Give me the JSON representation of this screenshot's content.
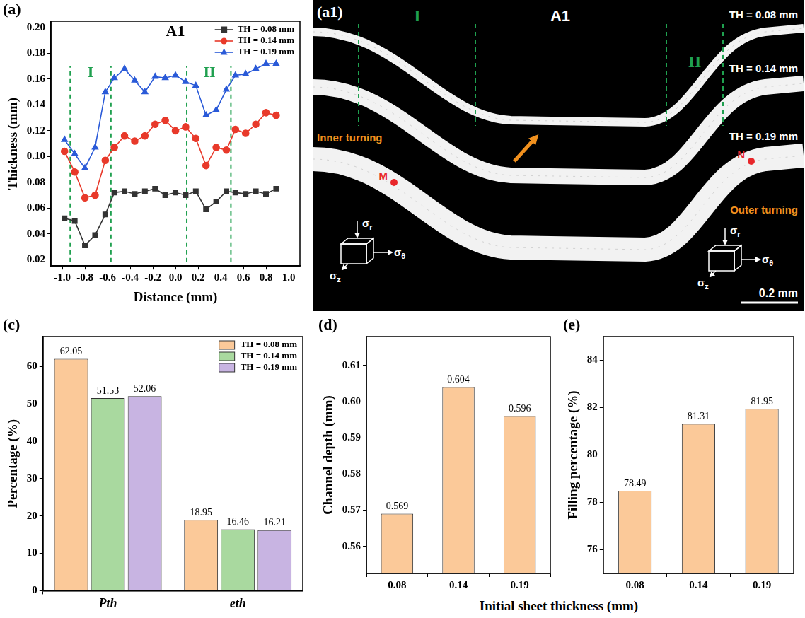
{
  "chart_data": [
    {
      "panel": "(a)",
      "type": "line",
      "title": "A1",
      "xlabel": "Distance (mm)",
      "ylabel": "Thickness (mm)",
      "x": [
        -0.98,
        -0.89,
        -0.8,
        -0.71,
        -0.62,
        -0.54,
        -0.45,
        -0.36,
        -0.27,
        -0.18,
        -0.09,
        0,
        0.09,
        0.18,
        0.27,
        0.36,
        0.45,
        0.53,
        0.62,
        0.71,
        0.8,
        0.89
      ],
      "series": [
        {
          "name": "TH = 0.08 mm",
          "color": "#333333",
          "marker": "square",
          "values": [
            0.052,
            0.05,
            0.031,
            0.039,
            0.055,
            0.072,
            0.073,
            0.071,
            0.073,
            0.075,
            0.07,
            0.072,
            0.07,
            0.073,
            0.059,
            0.065,
            0.073,
            0.072,
            0.071,
            0.073,
            0.071,
            0.075
          ]
        },
        {
          "name": "TH = 0.14 mm",
          "color": "#e8392a",
          "marker": "circle",
          "values": [
            0.104,
            0.088,
            0.068,
            0.07,
            0.097,
            0.107,
            0.116,
            0.112,
            0.116,
            0.125,
            0.128,
            0.12,
            0.123,
            0.114,
            0.093,
            0.107,
            0.105,
            0.121,
            0.118,
            0.125,
            0.134,
            0.132
          ]
        },
        {
          "name": "TH = 0.19 mm",
          "color": "#2a5ad8",
          "marker": "triangle",
          "values": [
            0.113,
            0.102,
            0.091,
            0.107,
            0.15,
            0.161,
            0.168,
            0.159,
            0.15,
            0.162,
            0.161,
            0.163,
            0.158,
            0.155,
            0.132,
            0.136,
            0.152,
            0.163,
            0.164,
            0.168,
            0.172,
            0.172
          ]
        }
      ],
      "xlim": [
        -1.1,
        1.1
      ],
      "xticks": [
        {
          "value": -1,
          "label": "-1.0"
        },
        -0.8,
        -0.6,
        -0.4,
        -0.2,
        {
          "value": 0,
          "label": "0.0"
        },
        0.2,
        0.4,
        0.6,
        0.8,
        {
          "value": 1,
          "label": "1.0"
        }
      ],
      "ylim": [
        0.015,
        0.205
      ],
      "yticks": [
        0.02,
        0.04,
        0.06,
        0.08,
        {
          "value": 0.1,
          "label": "0.10"
        },
        0.12,
        0.14,
        0.16,
        0.18,
        {
          "value": 0.2,
          "label": "0.20"
        }
      ],
      "grid": false,
      "legend": "upper right",
      "annotations": [
        {
          "text": "I",
          "x": -0.75,
          "y": 0.165
        },
        {
          "text": "II",
          "x": 0.3,
          "y": 0.165
        }
      ],
      "vlines": [
        {
          "x": -0.93,
          "y": [
            0.018,
            0.17
          ]
        },
        {
          "x": -0.57,
          "y": [
            0.018,
            0.17
          ]
        },
        {
          "x": 0.1,
          "y": [
            0.018,
            0.17
          ]
        },
        {
          "x": 0.49,
          "y": [
            0.018,
            0.17
          ]
        }
      ]
    },
    {
      "panel": "(c)",
      "type": "bar",
      "ylabel": "Percentage (%)",
      "categories": [
        "Pth",
        "eth"
      ],
      "series": [
        {
          "name": "TH = 0.08 mm",
          "color": "#fbc999",
          "values": [
            62.05,
            18.95
          ]
        },
        {
          "name": "TH = 0.14 mm",
          "color": "#a9d99f",
          "values": [
            51.53,
            16.46
          ]
        },
        {
          "name": "TH = 0.19 mm",
          "color": "#c8b4e2",
          "values": [
            52.06,
            16.21
          ]
        }
      ],
      "ylim": [
        0,
        68
      ],
      "yticks": [
        0,
        10,
        20,
        30,
        40,
        50,
        60
      ],
      "grid": false,
      "legend": "upper right",
      "data_labels": true
    },
    {
      "panel": "(d)",
      "type": "bar",
      "xlabel": "Initial sheet thickness (mm)",
      "ylabel": "Channel depth (mm)",
      "categories": [
        "0.08",
        "0.14",
        "0.19"
      ],
      "values": [
        0.569,
        0.604,
        0.596
      ],
      "color": "#fbc999",
      "ylim": [
        0.5525,
        0.618
      ],
      "yticks": [
        0.56,
        0.57,
        0.58,
        0.59,
        {
          "value": 0.6,
          "label": "0.60"
        },
        0.61
      ],
      "grid": false,
      "data_labels": true
    },
    {
      "panel": "(e)",
      "type": "bar",
      "ylabel": "Filling percentage (%)",
      "categories": [
        "0.08",
        "0.14",
        "0.19"
      ],
      "values": [
        78.49,
        81.31,
        81.95
      ],
      "color": "#fbc999",
      "ylim": [
        75,
        85
      ],
      "yticks": [
        76,
        78,
        80,
        82,
        84
      ],
      "grid": false,
      "data_labels": true
    }
  ],
  "micrograph": {
    "panel": "(a1)",
    "title": "A1",
    "labels": [
      "TH = 0.08 mm",
      "TH = 0.14 mm",
      "TH = 0.19 mm"
    ],
    "zones": [
      "I",
      "II"
    ],
    "inner_label": "Inner turning",
    "outer_label": "Outer turning",
    "points": [
      "M",
      "N"
    ],
    "stress": [
      "σr",
      "σθ",
      "σz"
    ],
    "scale_bar": "0.2 mm"
  }
}
